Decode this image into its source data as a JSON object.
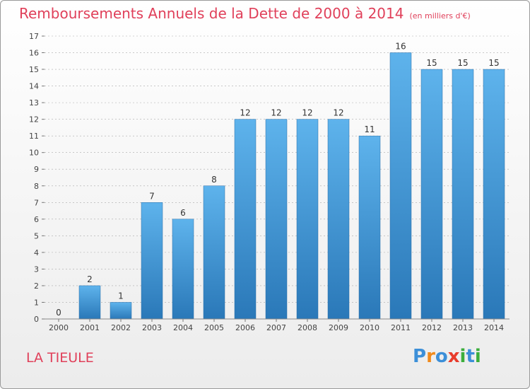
{
  "chart_title": "Remboursements Annuels de la Dette de 2000 à 2014",
  "unit_note": "(en milliers d'€)",
  "place_name": "LA TIEULE",
  "logo": {
    "text": "Proxiti",
    "letters": [
      "P",
      "r",
      "o",
      "x",
      "i",
      "t",
      "i"
    ],
    "letter_colors": [
      "#3c8fd8",
      "#f08a1c",
      "#3c8fd8",
      "#e83c2c",
      "#3cae3c",
      "#3c8fd8",
      "#3cae3c"
    ]
  },
  "colors": {
    "accent": "#e0405a",
    "bar_light": "#5eb3ec",
    "bar_dark": "#2a78b8",
    "grid": "#aaaaaa"
  },
  "chart_data": {
    "type": "bar",
    "title": "Remboursements Annuels de la Dette de 2000 à 2014",
    "subtitle": "(en milliers d'€)",
    "xlabel": "",
    "ylabel": "",
    "categories": [
      "2000",
      "2001",
      "2002",
      "2003",
      "2004",
      "2005",
      "2006",
      "2007",
      "2008",
      "2009",
      "2010",
      "2011",
      "2012",
      "2013",
      "2014"
    ],
    "values": [
      0,
      2,
      1,
      7,
      6,
      8,
      12,
      12,
      12,
      12,
      11,
      16,
      15,
      15,
      15
    ],
    "data_labels": [
      "0",
      "2",
      "1",
      "7",
      "6",
      "8",
      "12",
      "12",
      "12",
      "12",
      "11",
      "16",
      "15",
      "15",
      "15"
    ],
    "ylim": [
      0,
      17
    ],
    "yticks": [
      0,
      1,
      2,
      3,
      4,
      5,
      6,
      7,
      8,
      9,
      10,
      11,
      12,
      13,
      14,
      15,
      16,
      17
    ],
    "grid": "horizontal dashed",
    "legend": "none"
  }
}
